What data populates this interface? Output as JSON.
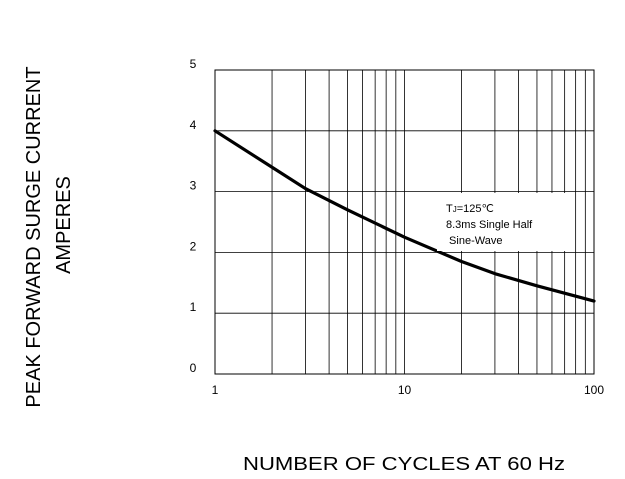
{
  "chart_data": {
    "type": "line",
    "xscale": "log",
    "xlim": [
      1,
      100
    ],
    "ylim": [
      0,
      5
    ],
    "xticks": [
      1,
      10,
      100
    ],
    "yticks": [
      0,
      1,
      2,
      3,
      4,
      5
    ],
    "xlabel": "NUMBER OF CYCLES AT 60 Hz",
    "ylabel_line1": "PEAK FORWARD SURGE CURRENT",
    "ylabel_line2": "AMPERES",
    "annotation": {
      "line1_prefix": "T",
      "line1_sub": "J",
      "line1_suffix": "=125℃",
      "line2": "8.3ms Single Half",
      "line3": " Sine-Wave"
    },
    "grid": true,
    "series": [
      {
        "x": [
          1,
          2,
          3,
          5,
          10,
          20,
          30,
          50,
          100
        ],
        "y": [
          4.0,
          3.4,
          3.05,
          2.7,
          2.25,
          1.85,
          1.65,
          1.45,
          1.2
        ],
        "color": "#000000"
      }
    ]
  }
}
